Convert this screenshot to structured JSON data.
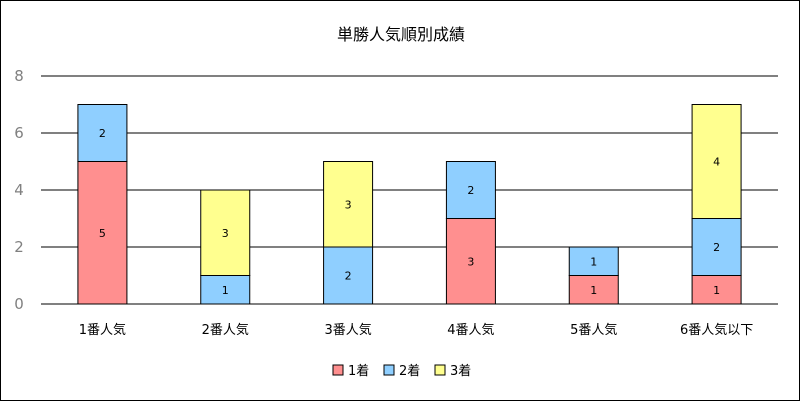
{
  "chart_data": {
    "type": "bar",
    "stacked": true,
    "title": "単勝人気順別成績",
    "xlabel": "",
    "ylabel": "",
    "categories": [
      "1番人気",
      "2番人気",
      "3番人気",
      "4番人気",
      "5番人気",
      "6番人気以下"
    ],
    "series": [
      {
        "name": "1着",
        "color": "#ff8f8f",
        "values": [
          5,
          0,
          0,
          3,
          1,
          1
        ]
      },
      {
        "name": "2着",
        "color": "#8fcfff",
        "values": [
          2,
          1,
          2,
          2,
          1,
          2
        ]
      },
      {
        "name": "3着",
        "color": "#ffff8f",
        "values": [
          0,
          3,
          3,
          0,
          0,
          4
        ]
      }
    ],
    "ylim": [
      0,
      8
    ],
    "yticks": [
      0,
      2,
      4,
      6,
      8
    ],
    "grid": true,
    "legend_position": "bottom"
  }
}
